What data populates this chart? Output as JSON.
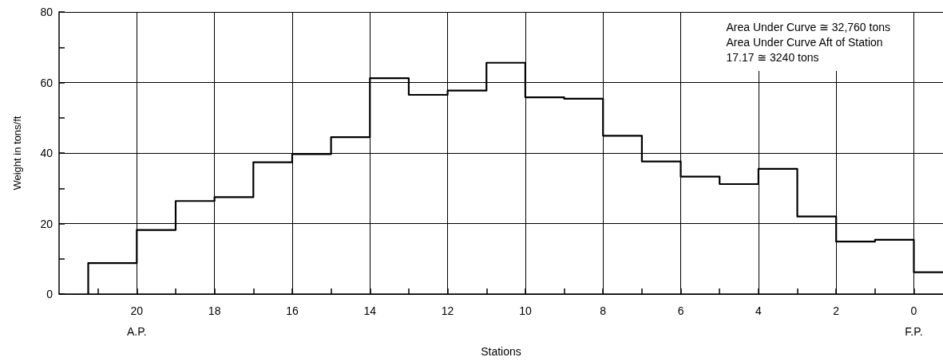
{
  "chart_data": {
    "type": "step",
    "xlabel": "Stations",
    "ylabel": "Weight in tons/ft",
    "x": [
      21.25,
      21.25,
      20,
      19,
      18,
      17,
      16,
      15,
      14,
      13,
      12,
      11,
      10,
      9,
      8,
      7,
      6,
      5,
      4,
      3,
      2,
      1,
      0,
      -0.75
    ],
    "values": [
      0,
      8.8,
      18.2,
      26.4,
      27.5,
      37.4,
      39.7,
      44.5,
      61.2,
      56.5,
      57.7,
      65.6,
      55.8,
      55.4,
      44.9,
      37.6,
      33.3,
      31.2,
      35.5,
      22.0,
      14.9,
      15.4,
      6.2,
      6.2
    ],
    "color": "#000000",
    "line_style": "solid",
    "xlim": [
      22,
      -0.75
    ],
    "xticks": [
      {
        "value": 21,
        "label": null
      },
      {
        "value": 20,
        "label": "20\nA.P."
      },
      {
        "value": 19,
        "label": null
      },
      18,
      {
        "value": 17,
        "label": null
      },
      16,
      {
        "value": 15,
        "label": null
      },
      14,
      {
        "value": 13,
        "label": null
      },
      12,
      {
        "value": 11,
        "label": null
      },
      10,
      {
        "value": 9,
        "label": null
      },
      8,
      {
        "value": 7,
        "label": null
      },
      6,
      {
        "value": 5,
        "label": null
      },
      4,
      {
        "value": 3,
        "label": null
      },
      2,
      {
        "value": 1,
        "label": null
      },
      {
        "value": 0,
        "label": "0\nF.P."
      }
    ],
    "ylim": [
      0,
      80
    ],
    "yticks": [
      0,
      {
        "value": 10,
        "label": null
      },
      20,
      {
        "value": 30,
        "label": null
      },
      40,
      {
        "value": 50,
        "label": null
      },
      60,
      {
        "value": 70,
        "label": null
      },
      80
    ],
    "grid": true,
    "annotations": [
      "Area Under Curve ≅ 32,760 tons",
      "Area Under Curve Aft of Station\n17.17 ≅ 3240 tons"
    ]
  }
}
